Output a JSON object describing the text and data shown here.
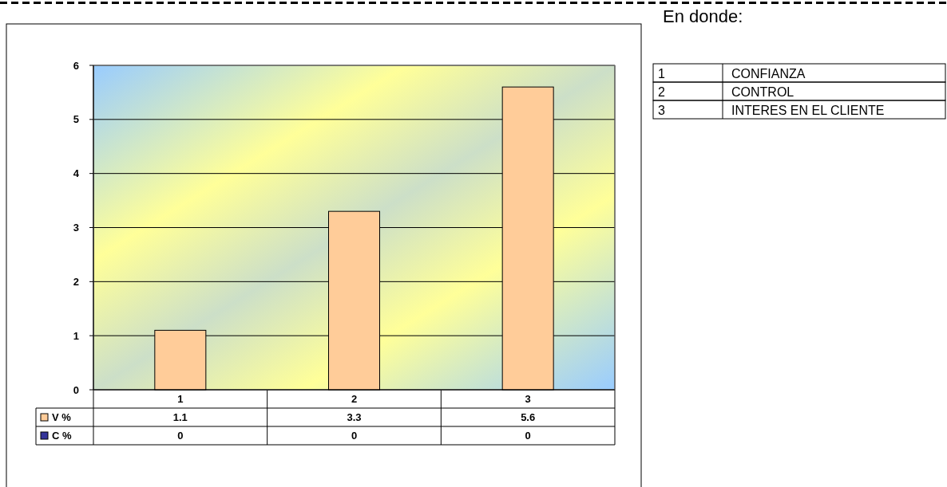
{
  "chart_data": {
    "type": "bar",
    "categories": [
      "1",
      "2",
      "3"
    ],
    "series": [
      {
        "name": "V %",
        "color": "#ffcc99",
        "values": [
          1.1,
          3.3,
          5.6
        ]
      },
      {
        "name": "C %",
        "color": "#333399",
        "values": [
          0,
          0,
          0
        ]
      }
    ],
    "ylim": [
      0,
      6
    ],
    "yticks": [
      0,
      1,
      2,
      3,
      4,
      5,
      6
    ],
    "grid": "y",
    "data_labels": true,
    "legend": "bottom",
    "annotations": [
      "En donde:",
      "1",
      "CONFIANZA",
      "2",
      "CONTROL",
      "3",
      "INTERES EN EL CLIENTE"
    ]
  }
}
